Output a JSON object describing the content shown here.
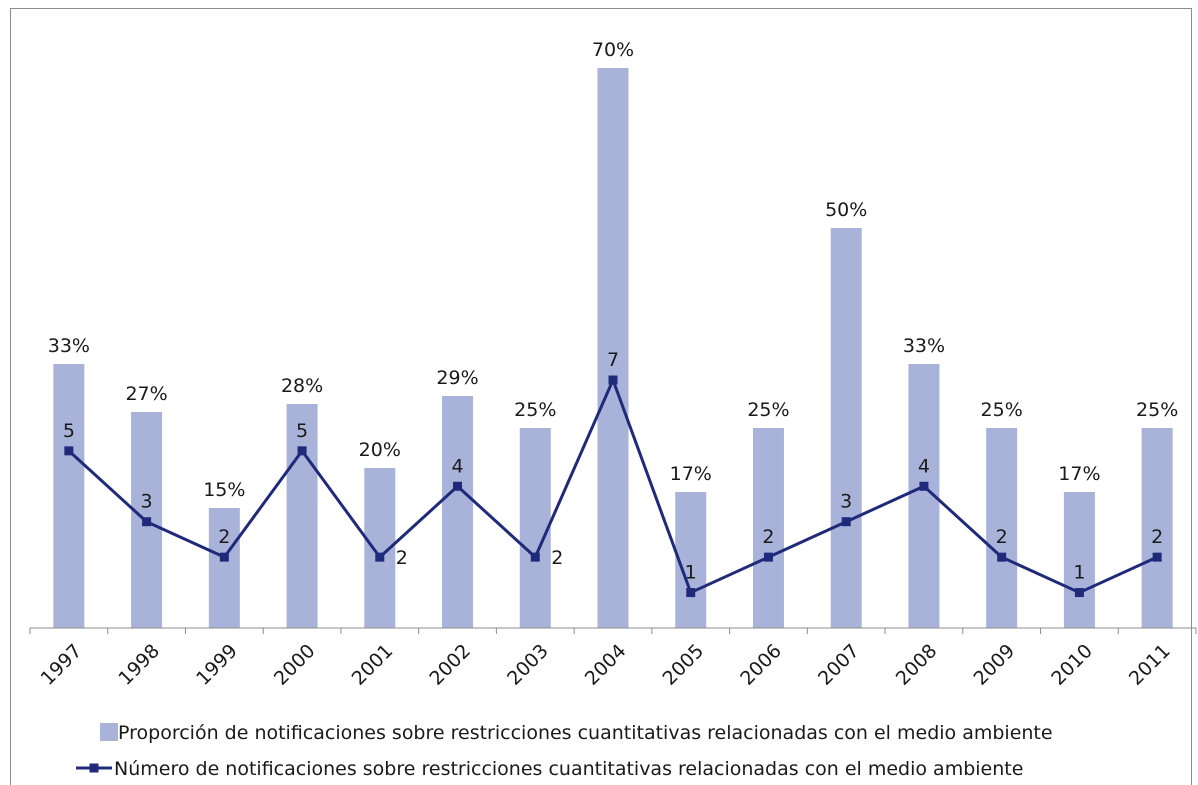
{
  "chart_data": {
    "type": "bar",
    "categories": [
      "1997",
      "1998",
      "1999",
      "2000",
      "2001",
      "2002",
      "2003",
      "2004",
      "2005",
      "2006",
      "2007",
      "2008",
      "2009",
      "2010",
      "2011"
    ],
    "series": [
      {
        "name": "Proporción de notificaciones sobre restricciones cuantitativas relacionadas con el medio ambiente",
        "kind": "bar",
        "values": [
          33,
          27,
          15,
          28,
          20,
          29,
          25,
          70,
          17,
          25,
          50,
          33,
          25,
          17,
          25
        ],
        "labels": [
          "33%",
          "27%",
          "15%",
          "28%",
          "20%",
          "29%",
          "25%",
          "70%",
          "17%",
          "25%",
          "50%",
          "33%",
          "25%",
          "17%",
          "25%"
        ],
        "color": "#a9b2d9"
      },
      {
        "name": "Número de notificaciones sobre restricciones cuantitativas relacionadas con el medio ambiente",
        "kind": "line",
        "values": [
          5,
          3,
          2,
          5,
          2,
          4,
          2,
          7,
          1,
          2,
          3,
          4,
          2,
          1,
          2
        ],
        "color": "#1f2a7a"
      }
    ],
    "title": "",
    "xlabel": "",
    "ylabel": "",
    "bar_ylim": [
      0,
      70
    ],
    "line_ylim": [
      0,
      7
    ],
    "grid": false,
    "legend_position": "bottom"
  }
}
